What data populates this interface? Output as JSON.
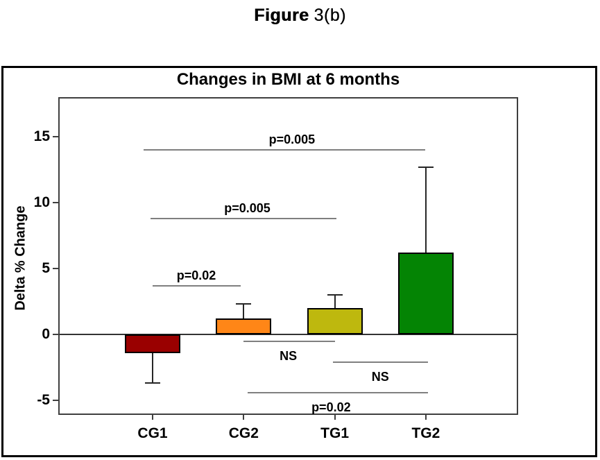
{
  "figure_title": {
    "prefix": "Figure",
    "number": "3(b)"
  },
  "chart_data": {
    "type": "bar",
    "title": "Changes in BMI at 6 months",
    "ylabel": "Delta % Change",
    "xlabel": "",
    "categories": [
      "CG1",
      "CG2",
      "TG1",
      "TG2"
    ],
    "values": [
      -1.4,
      1.2,
      2.0,
      6.2
    ],
    "error_whisker_ends": [
      -3.7,
      2.3,
      3.0,
      12.7
    ],
    "bar_colors": [
      "#9A0000",
      "#FF8617",
      "#BEB80E",
      "#048404"
    ],
    "yticks": [
      15,
      10,
      5,
      0,
      -5
    ],
    "ylim": [
      -6.0,
      17.9
    ],
    "baseline": 0,
    "grid": false,
    "legend": false,
    "annotations": [
      {
        "label": "p=0.005",
        "pair": [
          "CG1",
          "TG2"
        ],
        "x1": -0.1,
        "x2": 2.99,
        "y": 14.0,
        "label_side": "above",
        "label_cx": 1.53
      },
      {
        "label": "p=0.005",
        "pair": [
          "CG1",
          "TG1"
        ],
        "x1": -0.02,
        "x2": 2.02,
        "y": 8.8,
        "label_side": "above",
        "label_cx": 1.04
      },
      {
        "label": "p=0.02",
        "pair": [
          "CG1",
          "CG2"
        ],
        "x1": 0.0,
        "x2": 0.97,
        "y": 3.7,
        "label_side": "above",
        "label_cx": 0.48
      },
      {
        "label": "NS",
        "pair": [
          "CG2",
          "TG1"
        ],
        "x1": 1.0,
        "x2": 2.0,
        "y": -0.5,
        "label_side": "below",
        "label_cx": 1.49
      },
      {
        "label": "NS",
        "pair": [
          "TG1",
          "TG2"
        ],
        "x1": 1.98,
        "x2": 3.02,
        "y": -2.1,
        "label_side": "below",
        "label_cx": 2.5
      },
      {
        "label": "p=0.02",
        "pair": [
          "CG2",
          "TG2"
        ],
        "x1": 1.04,
        "x2": 3.02,
        "y": -4.4,
        "label_side": "below",
        "label_cx": 1.96
      }
    ],
    "colors": {
      "annotation_line": "#7F7F7F",
      "error_bar": "#262626",
      "bar_border": "#000000",
      "axis_frame": "#3F3F3F",
      "zero_line": "#333333",
      "outer_border": "#000000",
      "text": "#000000",
      "background": "#FFFFFF"
    }
  }
}
